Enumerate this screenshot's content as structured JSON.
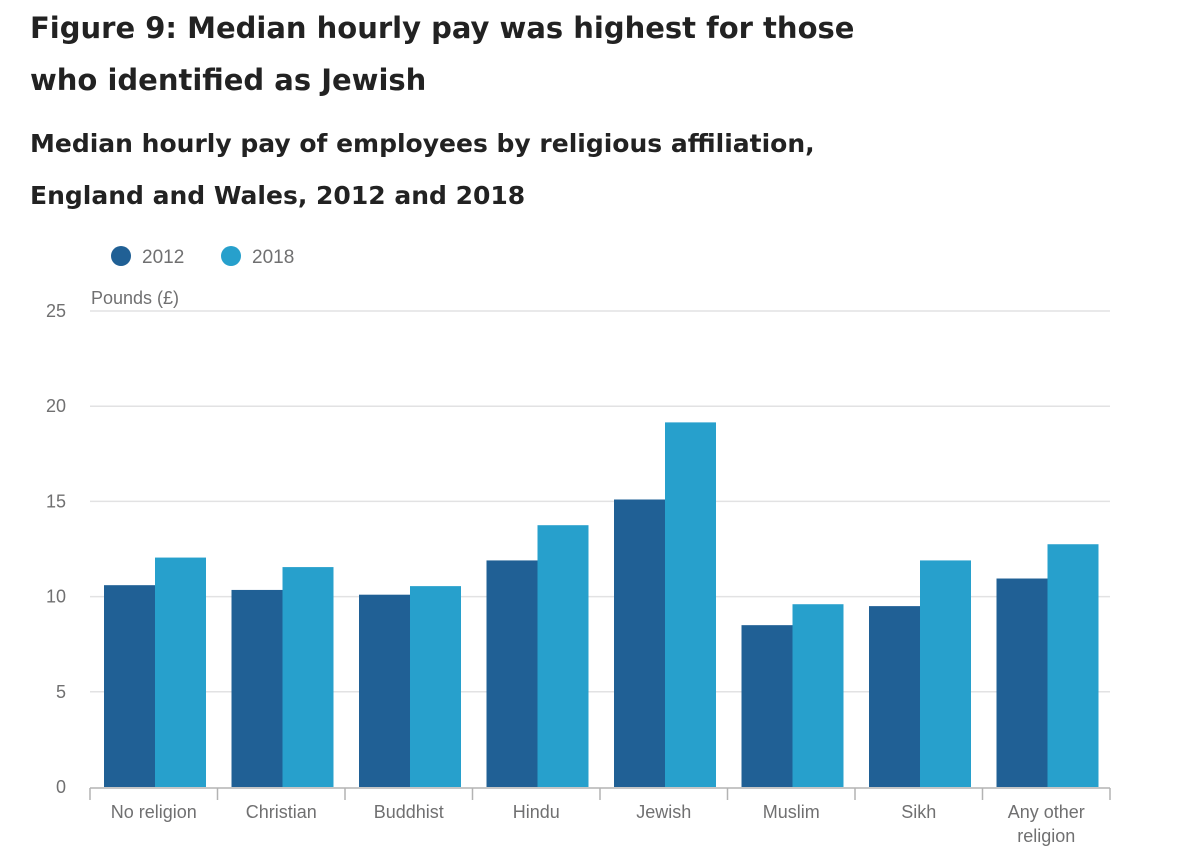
{
  "title": "Figure 9: Median hourly pay was highest for those who identified as Jewish",
  "subtitle": "Median hourly pay of employees by religious affiliation, England and Wales, 2012 and 2018",
  "colors": {
    "series_2012": "#206095",
    "series_2018": "#27a0cc",
    "grid": "#e2e2e3",
    "axis": "#b3b3b3",
    "text": "#707071"
  },
  "chart_data": {
    "type": "bar",
    "title": "Figure 9: Median hourly pay was highest for those who identified as Jewish",
    "subtitle": "Median hourly pay of employees by religious affiliation, England and Wales, 2012 and 2018",
    "ylabel": "Pounds (£)",
    "xlabel": "",
    "ylim": [
      0,
      25
    ],
    "yticks": [
      0,
      5,
      10,
      15,
      20,
      25
    ],
    "grid": true,
    "legend_position": "top-left",
    "categories": [
      [
        "No religion"
      ],
      [
        "Christian"
      ],
      [
        "Buddhist"
      ],
      [
        "Hindu"
      ],
      [
        "Jewish"
      ],
      [
        "Muslim"
      ],
      [
        "Sikh"
      ],
      [
        "Any other",
        "religion"
      ]
    ],
    "series": [
      {
        "name": "2012",
        "color": "#206095",
        "values": [
          10.6,
          10.35,
          10.1,
          11.9,
          15.1,
          8.5,
          9.5,
          10.95
        ]
      },
      {
        "name": "2018",
        "color": "#27a0cc",
        "values": [
          12.05,
          11.55,
          10.55,
          13.75,
          19.15,
          9.6,
          11.9,
          12.75
        ]
      }
    ]
  }
}
